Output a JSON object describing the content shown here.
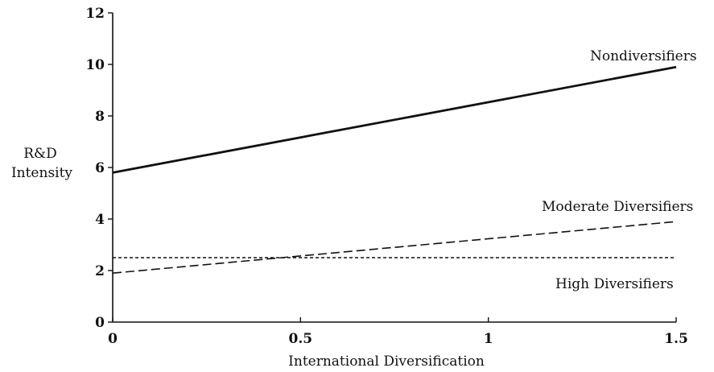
{
  "chart_data": {
    "type": "line",
    "title": "",
    "xlabel": "International Diversification",
    "ylabel": [
      "R&D",
      "Intensity"
    ],
    "xlim": [
      0,
      1.5
    ],
    "ylim": [
      0,
      12
    ],
    "x_ticks": [
      0,
      0.5,
      1,
      1.5
    ],
    "x_tick_labels": [
      "0",
      "0.5",
      "1",
      "1.5"
    ],
    "y_ticks": [
      0,
      2,
      4,
      6,
      8,
      10,
      12
    ],
    "y_tick_labels": [
      "0",
      "2",
      "4",
      "6",
      "8",
      "10",
      "12"
    ],
    "grid": false,
    "legend": "inline labels",
    "series": [
      {
        "name": "Nondiversifiers",
        "x": [
          0,
          1.5
        ],
        "y": [
          5.8,
          9.9
        ],
        "style": "solid",
        "color": "#111111"
      },
      {
        "name": "Moderate Diversifiers",
        "x": [
          0,
          1.5
        ],
        "y": [
          1.9,
          3.9
        ],
        "style": "dashed",
        "color": "#111111"
      },
      {
        "name": "High Diversifiers",
        "x": [
          0,
          1.5
        ],
        "y": [
          2.5,
          2.5
        ],
        "style": "dotted",
        "color": "#111111"
      }
    ]
  }
}
